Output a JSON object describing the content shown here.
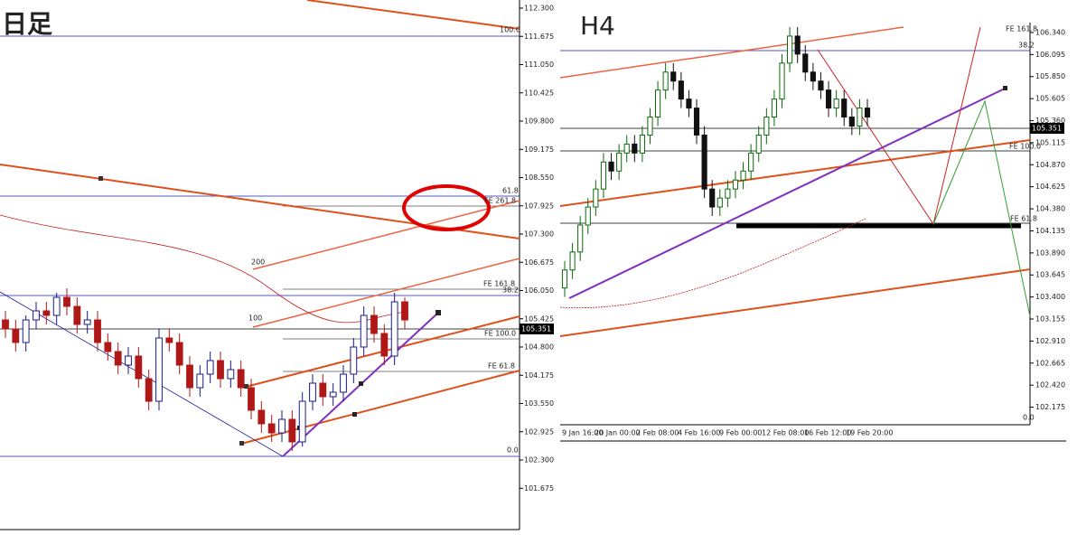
{
  "chart_data": [
    {
      "type": "candlestick",
      "title": "日足",
      "open": [
        105.4,
        105.2,
        104.9,
        105.4,
        105.6,
        105.5,
        105.9,
        105.7,
        105.3,
        105.4,
        104.9,
        104.7,
        104.4,
        104.6,
        104.1,
        103.6,
        105.0,
        104.9,
        104.4,
        103.9,
        104.2,
        104.5,
        104.1,
        104.3,
        103.9,
        103.4,
        103.1,
        102.9,
        103.2,
        102.7,
        103.6,
        104.0,
        103.7,
        103.8,
        104.2,
        104.8,
        105.5,
        105.1,
        104.6,
        105.8
      ],
      "high": [
        105.6,
        105.4,
        105.5,
        105.8,
        105.8,
        106.0,
        106.1,
        105.9,
        105.6,
        105.6,
        105.1,
        104.9,
        104.8,
        104.8,
        104.3,
        105.2,
        105.2,
        105.1,
        104.6,
        104.4,
        104.7,
        104.7,
        104.5,
        104.5,
        104.1,
        103.6,
        103.3,
        103.4,
        103.4,
        103.8,
        104.2,
        104.2,
        104.0,
        104.4,
        105.0,
        105.7,
        105.7,
        105.3,
        106.0,
        105.9
      ],
      "low": [
        105.0,
        104.7,
        104.7,
        105.2,
        105.3,
        105.3,
        105.5,
        105.1,
        105.1,
        104.7,
        104.5,
        104.2,
        104.2,
        103.9,
        103.4,
        103.4,
        104.7,
        104.2,
        103.7,
        103.7,
        104.0,
        103.9,
        103.9,
        103.7,
        103.2,
        102.9,
        102.7,
        102.7,
        102.5,
        102.6,
        103.4,
        103.5,
        103.5,
        103.6,
        104.0,
        104.6,
        104.9,
        104.4,
        104.4,
        105.2
      ],
      "close": [
        105.2,
        104.9,
        105.4,
        105.6,
        105.5,
        105.9,
        105.7,
        105.3,
        105.4,
        104.9,
        104.7,
        104.4,
        104.6,
        104.1,
        103.6,
        105.0,
        104.9,
        104.4,
        103.9,
        104.2,
        104.5,
        104.1,
        104.3,
        103.9,
        103.4,
        103.1,
        102.9,
        103.2,
        102.7,
        103.6,
        104.0,
        103.7,
        103.8,
        104.2,
        104.8,
        105.5,
        105.1,
        104.6,
        105.8,
        105.4
      ],
      "up_color": "#1a1a8c",
      "down_color": "#b01818",
      "ylim": [
        100.78,
        112.48
      ],
      "yticks": [
        {
          "value": 112.3,
          "label": "112.300"
        },
        {
          "value": 111.675,
          "label": "111.675"
        },
        {
          "value": 111.05,
          "label": "111.050"
        },
        {
          "value": 110.425,
          "label": "110.425"
        },
        {
          "value": 109.8,
          "label": "109.800"
        },
        {
          "value": 109.175,
          "label": "109.175"
        },
        {
          "value": 108.55,
          "label": "108.550"
        },
        {
          "value": 107.925,
          "label": "107.925"
        },
        {
          "value": 107.3,
          "label": "107.300"
        },
        {
          "value": 106.675,
          "label": "106.675"
        },
        {
          "value": 106.05,
          "label": "106.050"
        },
        {
          "value": 105.425,
          "label": "105.425"
        },
        {
          "value": 104.8,
          "label": "104.800"
        },
        {
          "value": 104.175,
          "label": "104.175"
        },
        {
          "value": 103.55,
          "label": "103.550"
        },
        {
          "value": 102.925,
          "label": "102.925"
        },
        {
          "value": 102.3,
          "label": "102.300"
        },
        {
          "value": 101.675,
          "label": "101.675"
        }
      ],
      "price_label": "105.351",
      "annotations": [
        "100.0",
        "61.8",
        "FE 261.8",
        "200",
        "100",
        "FE 161.8",
        "38.2",
        "FE 100.0",
        "FE 61.8",
        "0.0"
      ]
    },
    {
      "type": "candlestick",
      "title": "H4",
      "open": [
        103.5,
        103.7,
        103.9,
        104.2,
        104.4,
        104.6,
        104.9,
        104.8,
        105.0,
        105.1,
        105.0,
        105.2,
        105.4,
        105.7,
        105.9,
        105.8,
        105.6,
        105.5,
        105.2,
        104.6,
        104.4,
        104.5,
        104.6,
        104.7,
        104.8,
        105.0,
        105.2,
        105.4,
        105.6,
        106.0,
        106.3,
        106.1,
        105.9,
        105.8,
        105.7,
        105.5,
        105.6,
        105.4,
        105.3,
        105.5
      ],
      "high": [
        103.8,
        104.0,
        104.3,
        104.5,
        104.7,
        105.0,
        105.0,
        105.1,
        105.2,
        105.2,
        105.3,
        105.5,
        105.8,
        106.0,
        106.0,
        105.9,
        105.7,
        105.6,
        105.3,
        104.7,
        104.6,
        104.7,
        104.8,
        104.9,
        105.1,
        105.3,
        105.5,
        105.7,
        106.1,
        106.4,
        106.4,
        106.2,
        106.0,
        105.9,
        105.8,
        105.7,
        105.7,
        105.5,
        105.6,
        105.6
      ],
      "low": [
        103.4,
        103.6,
        103.8,
        104.1,
        104.3,
        104.5,
        104.7,
        104.7,
        104.9,
        104.9,
        104.9,
        105.1,
        105.3,
        105.6,
        105.7,
        105.5,
        105.4,
        105.1,
        104.5,
        104.3,
        104.3,
        104.4,
        104.5,
        104.6,
        104.7,
        104.9,
        105.1,
        105.3,
        105.5,
        105.9,
        106.0,
        105.8,
        105.7,
        105.6,
        105.4,
        105.4,
        105.3,
        105.2,
        105.2,
        105.3
      ],
      "close": [
        103.7,
        103.9,
        104.2,
        104.4,
        104.6,
        104.9,
        104.8,
        105.0,
        105.1,
        105.0,
        105.2,
        105.4,
        105.7,
        105.9,
        105.8,
        105.6,
        105.5,
        105.2,
        104.6,
        104.4,
        104.5,
        104.6,
        104.7,
        104.8,
        105.0,
        105.2,
        105.4,
        105.6,
        106.0,
        106.3,
        106.1,
        105.9,
        105.8,
        105.7,
        105.5,
        105.6,
        105.4,
        105.3,
        105.5,
        105.4
      ],
      "up_color": "#0a6a0a",
      "down_color": "#111111",
      "ylim": [
        102.0,
        106.45
      ],
      "yticks": [
        {
          "value": 106.34,
          "label": "106.340"
        },
        {
          "value": 106.095,
          "label": "106.095"
        },
        {
          "value": 105.85,
          "label": "105.850"
        },
        {
          "value": 105.605,
          "label": "105.605"
        },
        {
          "value": 105.36,
          "label": "105.360"
        },
        {
          "value": 105.115,
          "label": "105.115"
        },
        {
          "value": 104.87,
          "label": "104.870"
        },
        {
          "value": 104.625,
          "label": "104.625"
        },
        {
          "value": 104.38,
          "label": "104.380"
        },
        {
          "value": 104.135,
          "label": "104.135"
        },
        {
          "value": 103.89,
          "label": "103.890"
        },
        {
          "value": 103.645,
          "label": "103.645"
        },
        {
          "value": 103.4,
          "label": "103.400"
        },
        {
          "value": 103.155,
          "label": "103.155"
        },
        {
          "value": 102.91,
          "label": "102.910"
        },
        {
          "value": 102.665,
          "label": "102.665"
        },
        {
          "value": 102.42,
          "label": "102.420"
        },
        {
          "value": 102.175,
          "label": "102.175"
        }
      ],
      "x_labels": [
        "9 Jan 16:00",
        "20 Jan 00:00",
        "2 Feb 08:00",
        "4 Feb 16:00",
        "9 Feb 00:00",
        "12 Feb 08:00",
        "16 Feb 12:00",
        "19 Feb 20:00"
      ],
      "price_label": "105.351",
      "annotations": [
        "FE 161.8",
        "38.2",
        "FE 100.0",
        "FE 61.8",
        "0.0"
      ]
    }
  ]
}
